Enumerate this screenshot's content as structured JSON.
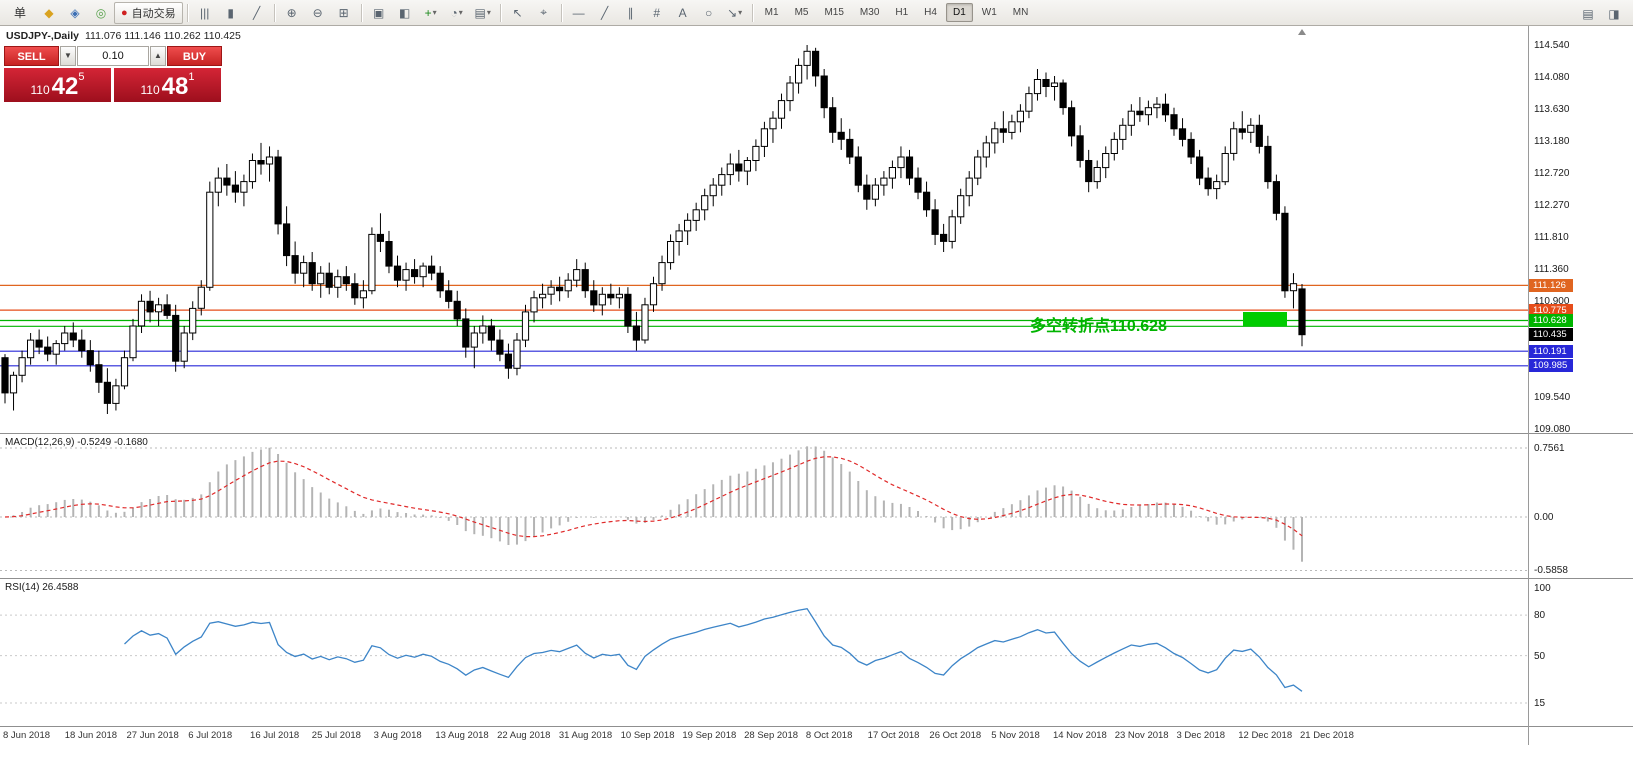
{
  "toolbar": {
    "items": [
      {
        "kind": "text",
        "name": "menu-order",
        "label": "单"
      },
      {
        "kind": "icon",
        "name": "new-order-icon",
        "glyph": "◆",
        "color": "#d9a21f"
      },
      {
        "kind": "icon",
        "name": "chart-window-icon",
        "glyph": "◈",
        "color": "#3b6fb5"
      },
      {
        "kind": "icon",
        "name": "market-watch-icon",
        "glyph": "◎",
        "color": "#58a24c"
      },
      {
        "kind": "button",
        "name": "autotrade-button",
        "glyph": "●",
        "color": "#cf2121",
        "label": "自动交易"
      },
      {
        "kind": "sep"
      },
      {
        "kind": "icon",
        "name": "bar-chart-icon",
        "glyph": "|||"
      },
      {
        "kind": "icon",
        "name": "candlestick-chart-icon",
        "glyph": "▮"
      },
      {
        "kind": "icon",
        "name": "line-chart-icon",
        "glyph": "╱"
      },
      {
        "kind": "sep"
      },
      {
        "kind": "icon",
        "name": "zoom-in-icon",
        "glyph": "⊕"
      },
      {
        "kind": "icon",
        "name": "zoom-out-icon",
        "glyph": "⊖"
      },
      {
        "kind": "icon",
        "name": "tile-windows-icon",
        "glyph": "⊞"
      },
      {
        "kind": "sep"
      },
      {
        "kind": "icon",
        "name": "cascade-windows-icon",
        "glyph": "▣"
      },
      {
        "kind": "icon",
        "name": "arrange-windows-icon",
        "glyph": "◧"
      },
      {
        "kind": "icondd",
        "name": "add-indicator-icon",
        "glyph": "+",
        "color": "#1d8a1d"
      },
      {
        "kind": "icondd",
        "name": "periods-icon",
        "glyph": "◔"
      },
      {
        "kind": "icondd",
        "name": "template-icon",
        "glyph": "▤"
      },
      {
        "kind": "sep"
      },
      {
        "kind": "icon",
        "name": "cursor-icon",
        "glyph": "↖"
      },
      {
        "kind": "icon",
        "name": "crosshair-icon",
        "glyph": "⌖"
      },
      {
        "kind": "sep"
      },
      {
        "kind": "icon",
        "name": "horizontal-line-icon",
        "glyph": "—"
      },
      {
        "kind": "icon",
        "name": "trendline-icon",
        "glyph": "╱"
      },
      {
        "kind": "icon",
        "name": "channel-icon",
        "glyph": "∥"
      },
      {
        "kind": "icon",
        "name": "fibonacci-icon",
        "glyph": "#"
      },
      {
        "kind": "icon",
        "name": "text-tool-icon",
        "glyph": "A"
      },
      {
        "kind": "icon",
        "name": "shapes-icon",
        "glyph": "○"
      },
      {
        "kind": "icondd",
        "name": "arrows-tool-icon",
        "glyph": "↘"
      },
      {
        "kind": "sep"
      }
    ],
    "timeframes": [
      "M1",
      "M5",
      "M15",
      "M30",
      "H1",
      "H4",
      "D1",
      "W1",
      "MN"
    ],
    "active_timeframe": "D1",
    "right_icons": [
      {
        "name": "alerts-icon",
        "glyph": "▤"
      },
      {
        "name": "layout-icon",
        "glyph": "◨"
      }
    ]
  },
  "chart_header": {
    "symbol": "USDJPY-,Daily",
    "ohlc": "111.076 111.146 110.262 110.425"
  },
  "trade_panel": {
    "sell_label": "SELL",
    "buy_label": "BUY",
    "lot": "0.10",
    "sell_dropdown_glyph": "▼",
    "lot_up_glyph": "▲",
    "sell": {
      "small": "110",
      "big": "42",
      "sup": "5"
    },
    "buy": {
      "small": "110",
      "big": "48",
      "sup": "1"
    }
  },
  "annotation": {
    "text": "多空转折点110.628",
    "color": "#00b400",
    "box_color": "#00cc00"
  },
  "levels": [
    {
      "label": "111.126",
      "price": 111.126,
      "color": "#e06520",
      "tagged": true
    },
    {
      "label": "110.775",
      "price": 110.775,
      "color": "#e64d1a",
      "tagged": true
    },
    {
      "label": "110.628",
      "price": 110.628,
      "color": "#00b400",
      "tagged": true
    },
    {
      "price": 110.545,
      "color": "#00b400",
      "tagged": false
    },
    {
      "label": "110.191",
      "price": 110.191,
      "color": "#2828d8",
      "tagged": true
    },
    {
      "label": "109.985",
      "price": 109.985,
      "color": "#2828d8",
      "tagged": true
    }
  ],
  "current_price": {
    "label": "110.435",
    "price": 110.435,
    "bg": "#000000"
  },
  "price_axis": {
    "ticks": [
      "114.540",
      "114.080",
      "113.630",
      "113.180",
      "112.720",
      "112.270",
      "111.810",
      "111.360",
      "110.900",
      "109.540",
      "109.080"
    ]
  },
  "macd": {
    "label": "MACD(12,26,9) -0.5249 -0.1680",
    "ticks": [
      "0.7561",
      "0.00",
      "-0.5858"
    ]
  },
  "rsi": {
    "label": "RSI(14) 26.4588",
    "ticks": [
      "100",
      "80",
      "50",
      "15"
    ],
    "level_lines": [
      80,
      50,
      15
    ]
  },
  "date_axis": [
    "8 Jun 2018",
    "18 Jun 2018",
    "27 Jun 2018",
    "6 Jul 2018",
    "16 Jul 2018",
    "25 Jul 2018",
    "3 Aug 2018",
    "13 Aug 2018",
    "22 Aug 2018",
    "31 Aug 2018",
    "10 Sep 2018",
    "19 Sep 2018",
    "28 Sep 2018",
    "8 Oct 2018",
    "17 Oct 2018",
    "26 Oct 2018",
    "5 Nov 2018",
    "14 Nov 2018",
    "23 Nov 2018",
    "3 Dec 2018",
    "12 Dec 2018",
    "21 Dec 2018"
  ],
  "chart_data": {
    "type": "candlestick",
    "symbol": "USDJPY",
    "timeframe": "Daily",
    "price_view": [
      109.03,
      114.81
    ],
    "macd_view": [
      -0.668,
      0.91
    ],
    "rsi_view": [
      -2,
      106.65
    ],
    "candles": [
      [
        110.1,
        110.15,
        109.45,
        109.6
      ],
      [
        109.6,
        109.9,
        109.35,
        109.85
      ],
      [
        109.85,
        110.2,
        109.75,
        110.1
      ],
      [
        110.1,
        110.45,
        110.0,
        110.35
      ],
      [
        110.35,
        110.5,
        110.15,
        110.25
      ],
      [
        110.25,
        110.4,
        110.05,
        110.15
      ],
      [
        110.15,
        110.35,
        110.0,
        110.3
      ],
      [
        110.3,
        110.55,
        110.2,
        110.45
      ],
      [
        110.45,
        110.6,
        110.25,
        110.35
      ],
      [
        110.35,
        110.5,
        110.1,
        110.2
      ],
      [
        110.2,
        110.35,
        109.9,
        110.0
      ],
      [
        110.0,
        110.2,
        109.6,
        109.75
      ],
      [
        109.75,
        109.95,
        109.3,
        109.45
      ],
      [
        109.45,
        109.8,
        109.35,
        109.7
      ],
      [
        109.7,
        110.2,
        109.65,
        110.1
      ],
      [
        110.1,
        110.65,
        110.05,
        110.55
      ],
      [
        110.55,
        111.0,
        110.45,
        110.9
      ],
      [
        110.9,
        111.05,
        110.6,
        110.75
      ],
      [
        110.75,
        110.95,
        110.55,
        110.85
      ],
      [
        110.85,
        111.0,
        110.65,
        110.7
      ],
      [
        110.7,
        110.85,
        109.9,
        110.05
      ],
      [
        110.05,
        110.55,
        109.95,
        110.45
      ],
      [
        110.45,
        110.9,
        110.35,
        110.8
      ],
      [
        110.8,
        111.2,
        110.7,
        111.1
      ],
      [
        111.1,
        112.6,
        111.05,
        112.45
      ],
      [
        112.45,
        112.8,
        112.25,
        112.65
      ],
      [
        112.65,
        112.85,
        112.4,
        112.55
      ],
      [
        112.55,
        112.75,
        112.3,
        112.45
      ],
      [
        112.45,
        112.7,
        112.25,
        112.6
      ],
      [
        112.6,
        113.0,
        112.5,
        112.9
      ],
      [
        112.9,
        113.15,
        112.7,
        112.85
      ],
      [
        112.85,
        113.1,
        112.6,
        112.95
      ],
      [
        112.95,
        113.05,
        111.85,
        112.0
      ],
      [
        112.0,
        112.25,
        111.4,
        111.55
      ],
      [
        111.55,
        111.75,
        111.15,
        111.3
      ],
      [
        111.3,
        111.55,
        111.1,
        111.45
      ],
      [
        111.45,
        111.6,
        111.05,
        111.15
      ],
      [
        111.15,
        111.4,
        110.95,
        111.3
      ],
      [
        111.3,
        111.45,
        111.0,
        111.1
      ],
      [
        111.1,
        111.35,
        110.95,
        111.25
      ],
      [
        111.25,
        111.4,
        111.05,
        111.15
      ],
      [
        111.15,
        111.3,
        110.85,
        110.95
      ],
      [
        110.95,
        111.2,
        110.8,
        111.05
      ],
      [
        111.05,
        111.95,
        111.0,
        111.85
      ],
      [
        111.85,
        112.15,
        111.6,
        111.75
      ],
      [
        111.75,
        111.9,
        111.3,
        111.4
      ],
      [
        111.4,
        111.55,
        111.1,
        111.2
      ],
      [
        111.2,
        111.45,
        111.05,
        111.35
      ],
      [
        111.35,
        111.5,
        111.15,
        111.25
      ],
      [
        111.25,
        111.45,
        111.1,
        111.4
      ],
      [
        111.4,
        111.55,
        111.2,
        111.3
      ],
      [
        111.3,
        111.4,
        110.95,
        111.05
      ],
      [
        111.05,
        111.2,
        110.8,
        110.9
      ],
      [
        110.9,
        111.05,
        110.55,
        110.65
      ],
      [
        110.65,
        110.8,
        110.1,
        110.25
      ],
      [
        110.25,
        110.55,
        109.95,
        110.45
      ],
      [
        110.45,
        110.7,
        110.3,
        110.55
      ],
      [
        110.55,
        110.65,
        110.2,
        110.35
      ],
      [
        110.35,
        110.5,
        110.05,
        110.15
      ],
      [
        110.15,
        110.3,
        109.8,
        109.95
      ],
      [
        109.95,
        110.45,
        109.85,
        110.35
      ],
      [
        110.35,
        110.85,
        110.25,
        110.75
      ],
      [
        110.75,
        111.05,
        110.6,
        110.95
      ],
      [
        110.95,
        111.15,
        110.8,
        111.0
      ],
      [
        111.0,
        111.2,
        110.85,
        111.1
      ],
      [
        111.1,
        111.25,
        110.9,
        111.05
      ],
      [
        111.05,
        111.3,
        110.95,
        111.2
      ],
      [
        111.2,
        111.5,
        111.1,
        111.35
      ],
      [
        111.35,
        111.45,
        110.95,
        111.05
      ],
      [
        111.05,
        111.2,
        110.75,
        110.85
      ],
      [
        110.85,
        111.1,
        110.7,
        111.0
      ],
      [
        111.0,
        111.15,
        110.85,
        110.95
      ],
      [
        110.95,
        111.1,
        110.8,
        111.0
      ],
      [
        111.0,
        111.1,
        110.45,
        110.55
      ],
      [
        110.55,
        110.75,
        110.2,
        110.35
      ],
      [
        110.35,
        110.95,
        110.3,
        110.85
      ],
      [
        110.85,
        111.25,
        110.75,
        111.15
      ],
      [
        111.15,
        111.55,
        111.05,
        111.45
      ],
      [
        111.45,
        111.85,
        111.35,
        111.75
      ],
      [
        111.75,
        112.0,
        111.55,
        111.9
      ],
      [
        111.9,
        112.15,
        111.7,
        112.05
      ],
      [
        112.05,
        112.3,
        111.9,
        112.2
      ],
      [
        112.2,
        112.5,
        112.05,
        112.4
      ],
      [
        112.4,
        112.65,
        112.25,
        112.55
      ],
      [
        112.55,
        112.8,
        112.4,
        112.7
      ],
      [
        112.7,
        113.0,
        112.55,
        112.85
      ],
      [
        112.85,
        113.05,
        112.6,
        112.75
      ],
      [
        112.75,
        112.95,
        112.55,
        112.9
      ],
      [
        112.9,
        113.2,
        112.75,
        113.1
      ],
      [
        113.1,
        113.45,
        112.95,
        113.35
      ],
      [
        113.35,
        113.6,
        113.15,
        113.5
      ],
      [
        113.5,
        113.85,
        113.35,
        113.75
      ],
      [
        113.75,
        114.1,
        113.6,
        114.0
      ],
      [
        114.0,
        114.35,
        113.85,
        114.25
      ],
      [
        114.25,
        114.54,
        114.05,
        114.45
      ],
      [
        114.45,
        114.5,
        113.95,
        114.1
      ],
      [
        114.1,
        114.2,
        113.5,
        113.65
      ],
      [
        113.65,
        113.8,
        113.15,
        113.3
      ],
      [
        113.3,
        113.5,
        113.05,
        113.2
      ],
      [
        113.2,
        113.35,
        112.85,
        112.95
      ],
      [
        112.95,
        113.1,
        112.45,
        112.55
      ],
      [
        112.55,
        112.7,
        112.2,
        112.35
      ],
      [
        112.35,
        112.65,
        112.25,
        112.55
      ],
      [
        112.55,
        112.75,
        112.4,
        112.65
      ],
      [
        112.65,
        112.9,
        112.5,
        112.8
      ],
      [
        112.8,
        113.1,
        112.65,
        112.95
      ],
      [
        112.95,
        113.05,
        112.55,
        112.65
      ],
      [
        112.65,
        112.8,
        112.35,
        112.45
      ],
      [
        112.45,
        112.6,
        112.1,
        112.2
      ],
      [
        112.2,
        112.35,
        111.7,
        111.85
      ],
      [
        111.85,
        112.0,
        111.6,
        111.75
      ],
      [
        111.75,
        112.2,
        111.65,
        112.1
      ],
      [
        112.1,
        112.5,
        112.0,
        112.4
      ],
      [
        112.4,
        112.75,
        112.25,
        112.65
      ],
      [
        112.65,
        113.05,
        112.55,
        112.95
      ],
      [
        112.95,
        113.25,
        112.8,
        113.15
      ],
      [
        113.15,
        113.45,
        113.0,
        113.35
      ],
      [
        113.35,
        113.6,
        113.15,
        113.3
      ],
      [
        113.3,
        113.55,
        113.2,
        113.45
      ],
      [
        113.45,
        113.7,
        113.3,
        113.6
      ],
      [
        113.6,
        113.95,
        113.5,
        113.85
      ],
      [
        113.85,
        114.2,
        113.75,
        114.05
      ],
      [
        114.05,
        114.15,
        113.8,
        113.95
      ],
      [
        113.95,
        114.1,
        113.75,
        114.0
      ],
      [
        114.0,
        114.05,
        113.55,
        113.65
      ],
      [
        113.65,
        113.75,
        113.1,
        113.25
      ],
      [
        113.25,
        113.4,
        112.8,
        112.9
      ],
      [
        112.9,
        113.05,
        112.45,
        112.6
      ],
      [
        112.6,
        112.9,
        112.5,
        112.8
      ],
      [
        112.8,
        113.1,
        112.65,
        113.0
      ],
      [
        113.0,
        113.3,
        112.9,
        113.2
      ],
      [
        113.2,
        113.5,
        113.05,
        113.4
      ],
      [
        113.4,
        113.7,
        113.25,
        113.6
      ],
      [
        113.6,
        113.8,
        113.45,
        113.55
      ],
      [
        113.55,
        113.75,
        113.4,
        113.65
      ],
      [
        113.65,
        113.8,
        113.5,
        113.7
      ],
      [
        113.7,
        113.85,
        113.45,
        113.55
      ],
      [
        113.55,
        113.65,
        113.25,
        113.35
      ],
      [
        113.35,
        113.5,
        113.1,
        113.2
      ],
      [
        113.2,
        113.3,
        112.85,
        112.95
      ],
      [
        112.95,
        113.05,
        112.55,
        112.65
      ],
      [
        112.65,
        112.8,
        112.4,
        112.5
      ],
      [
        112.5,
        112.7,
        112.35,
        112.6
      ],
      [
        112.6,
        113.1,
        112.55,
        113.0
      ],
      [
        113.0,
        113.45,
        112.9,
        113.35
      ],
      [
        113.35,
        113.6,
        113.2,
        113.3
      ],
      [
        113.3,
        113.5,
        113.15,
        113.4
      ],
      [
        113.4,
        113.55,
        113.0,
        113.1
      ],
      [
        113.1,
        113.25,
        112.5,
        112.6
      ],
      [
        112.6,
        112.7,
        112.05,
        112.15
      ],
      [
        112.15,
        112.25,
        110.95,
        111.05
      ],
      [
        111.05,
        111.3,
        110.8,
        111.15
      ],
      [
        111.076,
        111.146,
        110.262,
        110.425
      ]
    ]
  }
}
